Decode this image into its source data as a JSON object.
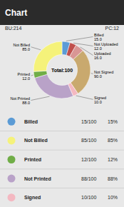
{
  "chart_data": {
    "type": "pie",
    "title": "Chart",
    "annotations": [
      "BU:214",
      "PC:12",
      "Total:100"
    ],
    "categories": [
      "Billed",
      "Not Uploaded",
      "Uploaded",
      "Not Signed",
      "Signed",
      "Not Printed",
      "Printed",
      "Not Billed"
    ],
    "values": [
      15,
      12,
      16,
      90,
      10,
      88,
      12,
      85
    ],
    "value_labels": [
      "15.0",
      "12.0",
      "16.0",
      "90.0",
      "10.0",
      "88.0",
      "12.0",
      "85.0"
    ],
    "colors": [
      "#5b9bd5",
      "#c0504d",
      "#d99694",
      "#c9a96e",
      "#f4b8c1",
      "#b9a2c8",
      "#70ad47",
      "#f5f27a"
    ],
    "data_labels": true,
    "legend_rows": [
      {
        "name": "Billed",
        "color": "#5b9bd5",
        "ratio": "15/100",
        "pct": "15%"
      },
      {
        "name": "Not Billed",
        "color": "#f5f27a",
        "ratio": "85/100",
        "pct": "85%"
      },
      {
        "name": "Printed",
        "color": "#70ad47",
        "ratio": "12/100",
        "pct": "12%"
      },
      {
        "name": "Not Printed",
        "color": "#b9a2c8",
        "ratio": "88/100",
        "pct": "88%"
      },
      {
        "name": "Signed",
        "color": "#f4b8c1",
        "ratio": "10/100",
        "pct": "10%"
      }
    ]
  }
}
